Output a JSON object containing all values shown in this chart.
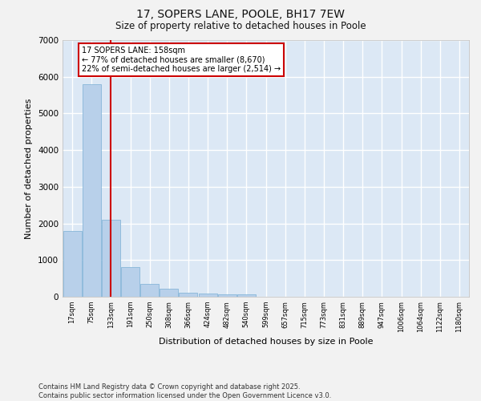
{
  "title_line1": "17, SOPERS LANE, POOLE, BH17 7EW",
  "title_line2": "Size of property relative to detached houses in Poole",
  "xlabel": "Distribution of detached houses by size in Poole",
  "ylabel": "Number of detached properties",
  "footnote_line1": "Contains HM Land Registry data © Crown copyright and database right 2025.",
  "footnote_line2": "Contains public sector information licensed under the Open Government Licence v3.0.",
  "categories": [
    "17sqm",
    "75sqm",
    "133sqm",
    "191sqm",
    "250sqm",
    "308sqm",
    "366sqm",
    "424sqm",
    "482sqm",
    "540sqm",
    "599sqm",
    "657sqm",
    "715sqm",
    "773sqm",
    "831sqm",
    "889sqm",
    "947sqm",
    "1006sqm",
    "1064sqm",
    "1122sqm",
    "1180sqm"
  ],
  "values": [
    1800,
    5800,
    2090,
    820,
    360,
    215,
    120,
    80,
    60,
    55,
    0,
    0,
    0,
    0,
    0,
    0,
    0,
    0,
    0,
    0,
    0
  ],
  "bar_color": "#b8d0ea",
  "bar_edge_color": "#7aafd4",
  "bg_color": "#dce8f5",
  "grid_color": "#ffffff",
  "fig_bg_color": "#f2f2f2",
  "vline_x": 2,
  "vline_color": "#cc0000",
  "annotation_title": "17 SOPERS LANE: 158sqm",
  "annotation_line2": "← 77% of detached houses are smaller (8,670)",
  "annotation_line3": "22% of semi-detached houses are larger (2,514) →",
  "annotation_box_edgecolor": "#cc0000",
  "annotation_bg": "#ffffff",
  "ylim": [
    0,
    7000
  ],
  "yticks": [
    0,
    1000,
    2000,
    3000,
    4000,
    5000,
    6000,
    7000
  ]
}
